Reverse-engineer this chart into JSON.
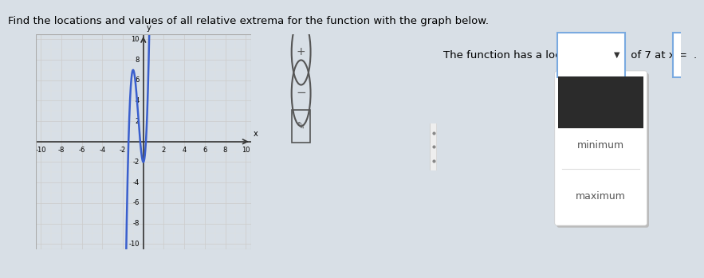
{
  "title_text": "Find the locations and values of all relative extrema for the function with the graph below.",
  "right_text": "The function has a local",
  "of_text": " of 7 at x =",
  "dropdown_options": [
    "minimum",
    "maximum"
  ],
  "graph_xlim": [
    -10,
    10
  ],
  "graph_ylim": [
    -10,
    10
  ],
  "graph_xticks": [
    -10,
    -8,
    -6,
    -4,
    -2,
    2,
    4,
    6,
    8,
    10
  ],
  "graph_yticks": [
    -10,
    -8,
    -6,
    -4,
    -2,
    2,
    4,
    6,
    8,
    10
  ],
  "curve_color": "#3a5fcd",
  "bg_color": "#dce3ea",
  "graph_bg": "#ffffff",
  "grid_color": "#cccccc",
  "axis_color": "#333333",
  "dropdown_bg": "#2b2b2b",
  "dropdown_border": "#7aaae0",
  "panel_shadow": "#cccccc",
  "input_box_border": "#7aaae0",
  "font_size_title": 9.5,
  "font_size_label": 6,
  "font_size_right": 9.5,
  "fig_bg": "#d8dfe6"
}
